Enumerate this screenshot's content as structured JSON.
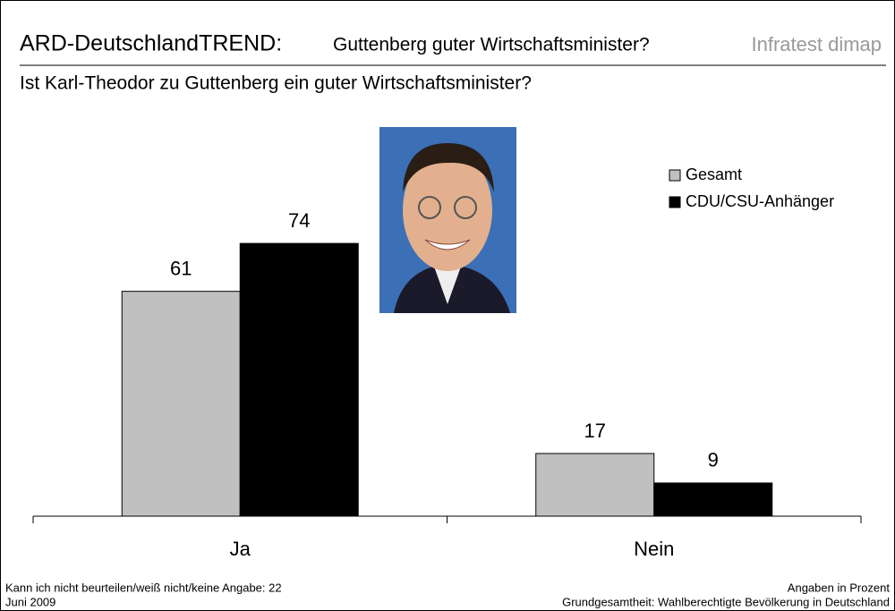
{
  "chart_data": {
    "type": "bar",
    "title": "ARD-DeutschlandTREND:",
    "subtitle": "Guttenberg guter Wirtschaftsminister?",
    "brand": "Infratest dimap",
    "question": "Ist Karl-Theodor zu Guttenberg ein guter Wirtschaftsminister?",
    "categories": [
      "Ja",
      "Nein"
    ],
    "series": [
      {
        "name": "Gesamt",
        "color": "#c0c0c0",
        "values": [
          61,
          17
        ]
      },
      {
        "name": "CDU/CSU-Anhänger",
        "color": "#000000",
        "values": [
          74,
          9
        ]
      }
    ],
    "notes": [
      "Kann ich nicht beurteilen/weiß nicht/keine Angabe: 22",
      "Juni 2009"
    ],
    "source": [
      "Angaben in Prozent",
      "Grundgesamtheit: Wahlberechtigte Bevölkerung in Deutschland"
    ]
  }
}
